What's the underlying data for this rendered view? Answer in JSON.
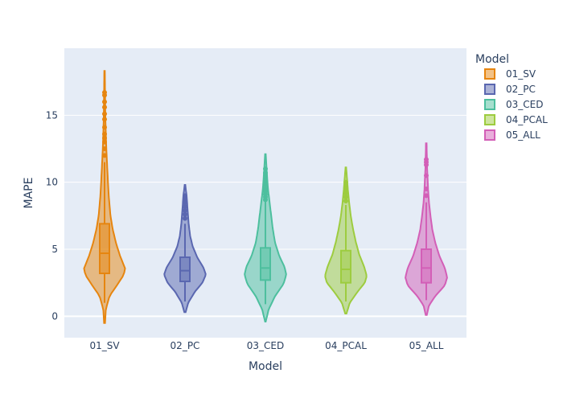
{
  "chart_data": {
    "type": "violin",
    "title": "",
    "xlabel": "Model",
    "ylabel": "MAPE",
    "ylim": [
      -1.6,
      20.0
    ],
    "yticks": [
      0,
      5,
      10,
      15
    ],
    "grid": true,
    "legend": {
      "title": "Model",
      "position": "right"
    },
    "series": [
      {
        "name": "01_SV",
        "color": "#e6850f",
        "box": {
          "q1": 3.2,
          "median": 4.7,
          "q3": 6.9,
          "whisker_low": 1.0,
          "whisker_high": 11.5
        },
        "range": [
          -0.5,
          18.3
        ],
        "density": [
          [
            -0.5,
            0.2
          ],
          [
            0.5,
            0.5
          ],
          [
            1.5,
            2.0
          ],
          [
            2.3,
            5.0
          ],
          [
            3.0,
            7.5
          ],
          [
            3.5,
            8.5
          ],
          [
            4.5,
            6.3
          ],
          [
            5.5,
            4.6
          ],
          [
            6.5,
            3.3
          ],
          [
            7.5,
            2.4
          ],
          [
            9,
            1.7
          ],
          [
            11,
            1.1
          ],
          [
            13,
            0.6
          ],
          [
            15,
            0.3
          ],
          [
            18.3,
            0.1
          ]
        ],
        "outliers": [
          12.0,
          12.5,
          13.0,
          13.3,
          13.6,
          14.1,
          14.7,
          15.1,
          15.6,
          16.0,
          16.5,
          16.7
        ]
      },
      {
        "name": "02_PC",
        "color": "#5a67b0",
        "box": {
          "q1": 2.6,
          "median": 3.4,
          "q3": 4.4,
          "whisker_low": 1.1,
          "whisker_high": 6.9
        },
        "range": [
          0.3,
          9.8
        ],
        "density": [
          [
            0.3,
            0.2
          ],
          [
            1.0,
            1.0
          ],
          [
            1.8,
            3.0
          ],
          [
            2.5,
            5.4
          ],
          [
            3.1,
            6.5
          ],
          [
            3.6,
            5.8
          ],
          [
            4.4,
            3.8
          ],
          [
            5.2,
            2.4
          ],
          [
            6.0,
            1.6
          ],
          [
            7.0,
            1.1
          ],
          [
            8.0,
            0.8
          ],
          [
            9.0,
            0.5
          ],
          [
            9.8,
            0.1
          ]
        ],
        "outliers": [
          7.3,
          7.6,
          7.9,
          8.2,
          8.5,
          8.8,
          9.0
        ]
      },
      {
        "name": "03_CED",
        "color": "#4dbf9e",
        "box": {
          "q1": 2.7,
          "median": 3.6,
          "q3": 5.1,
          "whisker_low": 0.9,
          "whisker_high": 8.7
        },
        "range": [
          -0.4,
          12.1
        ],
        "density": [
          [
            -0.4,
            0.1
          ],
          [
            0.5,
            1.0
          ],
          [
            1.5,
            3.0
          ],
          [
            2.4,
            5.6
          ],
          [
            3.1,
            6.5
          ],
          [
            3.7,
            5.9
          ],
          [
            4.5,
            4.3
          ],
          [
            5.5,
            3.0
          ],
          [
            6.5,
            2.3
          ],
          [
            7.5,
            1.8
          ],
          [
            8.5,
            1.3
          ],
          [
            9.5,
            0.8
          ],
          [
            10.5,
            0.5
          ],
          [
            12.1,
            0.1
          ]
        ],
        "outliers": [
          8.7,
          8.9,
          9.1,
          9.3,
          9.5,
          9.8,
          10.1,
          10.4,
          10.7,
          11.0
        ]
      },
      {
        "name": "04_PCAL",
        "color": "#9dcc3f",
        "box": {
          "q1": 2.5,
          "median": 3.5,
          "q3": 4.9,
          "whisker_low": 1.1,
          "whisker_high": 8.3
        },
        "range": [
          0.2,
          11.1
        ],
        "density": [
          [
            0.2,
            0.2
          ],
          [
            1.0,
            1.2
          ],
          [
            1.8,
            3.5
          ],
          [
            2.5,
            5.8
          ],
          [
            3.0,
            6.4
          ],
          [
            3.7,
            5.6
          ],
          [
            4.6,
            4.1
          ],
          [
            5.5,
            3.1
          ],
          [
            6.5,
            2.2
          ],
          [
            7.5,
            1.5
          ],
          [
            8.5,
            1.0
          ],
          [
            9.5,
            0.6
          ],
          [
            11.1,
            0.1
          ]
        ],
        "outliers": [
          8.6,
          8.9,
          9.2,
          9.5,
          9.8,
          10.0
        ]
      },
      {
        "name": "05_ALL",
        "color": "#d35fb7",
        "box": {
          "q1": 2.5,
          "median": 3.6,
          "q3": 5.0,
          "whisker_low": 1.2,
          "whisker_high": 8.5
        },
        "range": [
          0.1,
          12.9
        ],
        "density": [
          [
            0.1,
            0.2
          ],
          [
            0.8,
            0.9
          ],
          [
            1.5,
            3.0
          ],
          [
            2.3,
            6.2
          ],
          [
            2.9,
            7.0
          ],
          [
            3.6,
            6.2
          ],
          [
            4.5,
            4.4
          ],
          [
            5.5,
            3.0
          ],
          [
            6.5,
            2.0
          ],
          [
            7.5,
            1.4
          ],
          [
            8.5,
            0.9
          ],
          [
            9.5,
            0.6
          ],
          [
            11,
            0.3
          ],
          [
            12.9,
            0.1
          ]
        ],
        "outliers": [
          9.0,
          9.5,
          10.5,
          11.3,
          11.5,
          11.7
        ]
      }
    ]
  }
}
